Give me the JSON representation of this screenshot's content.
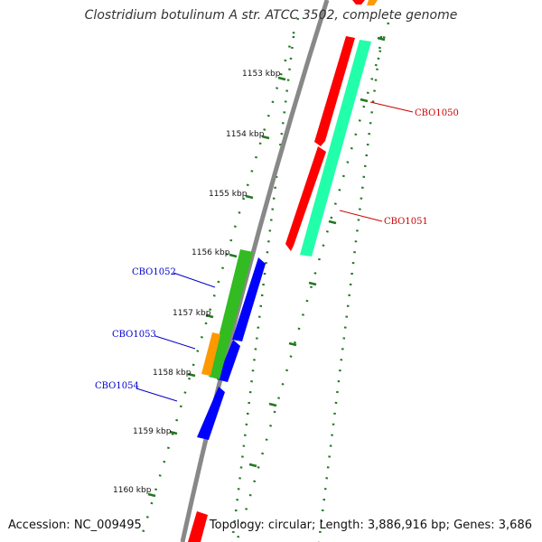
{
  "title": "Clostridium botulinum A str. ATCC 3502, complete genome",
  "footer": {
    "accession": "Accession: NC_009495",
    "summary": "Topology: circular; Length: 3,886,916 bp; Genes: 3,686"
  },
  "ticks": [
    "1153 kbp",
    "1154 kbp",
    "1155 kbp",
    "1156 kbp",
    "1157 kbp",
    "1158 kbp",
    "1159 kbp",
    "1160 kbp"
  ],
  "gene_labels": [
    {
      "name": "CBO1050",
      "color": "#cc0000"
    },
    {
      "name": "CBO1051",
      "color": "#cc0000"
    },
    {
      "name": "CBO1052",
      "color": "#0000cc"
    },
    {
      "name": "CBO1053",
      "color": "#0000cc"
    },
    {
      "name": "CBO1054",
      "color": "#0000cc"
    }
  ],
  "colors": {
    "forward_gene": "#ff0000",
    "forward_cds": "#22ffaa",
    "reverse_gene": "#0000ff",
    "reverse_cds": "#33bb22",
    "orf": "#ff9900",
    "backbone": "#888888",
    "tick_mark": "#227722"
  }
}
